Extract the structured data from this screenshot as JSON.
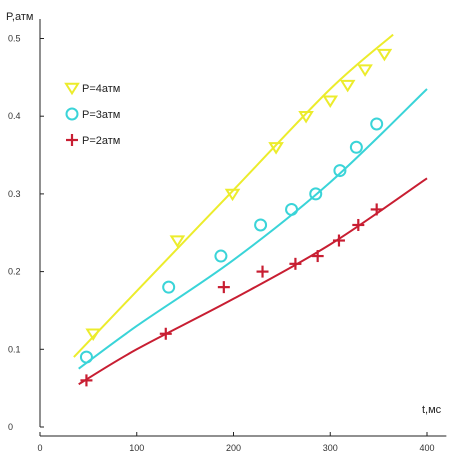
{
  "chart_data": {
    "type": "scatter",
    "xlabel": "t,мс",
    "ylabel": "P,атм",
    "xlim": [
      0,
      420
    ],
    "ylim": [
      0,
      0.52
    ],
    "x_ticks": [
      "0",
      "100",
      "200",
      "300",
      "400"
    ],
    "x_tick_values": [
      0,
      100,
      200,
      300,
      400
    ],
    "y_ticks": [
      "0",
      "0.1",
      "0.2",
      "0.3",
      "0.4",
      "0.5"
    ],
    "y_tick_values": [
      0,
      0.1,
      0.2,
      0.3,
      0.4,
      0.5
    ],
    "grid": false,
    "legend_position": "top-left",
    "series": [
      {
        "name": "P=4атм",
        "marker": "triangle-down",
        "color": "#ecec2c",
        "points": [
          [
            55,
            0.12
          ],
          [
            142,
            0.24
          ],
          [
            199,
            0.3
          ],
          [
            244,
            0.36
          ],
          [
            275,
            0.4
          ],
          [
            300,
            0.42
          ],
          [
            318,
            0.44
          ],
          [
            336,
            0.46
          ],
          [
            356,
            0.48
          ]
        ],
        "fit": [
          [
            35,
            0.09
          ],
          [
            100,
            0.175
          ],
          [
            200,
            0.305
          ],
          [
            300,
            0.435
          ],
          [
            365,
            0.505
          ]
        ]
      },
      {
        "name": "P=3атм",
        "marker": "circle",
        "color": "#3ad4d8",
        "points": [
          [
            48,
            0.09
          ],
          [
            133,
            0.18
          ],
          [
            187,
            0.22
          ],
          [
            228,
            0.26
          ],
          [
            260,
            0.28
          ],
          [
            285,
            0.3
          ],
          [
            310,
            0.33
          ],
          [
            327,
            0.36
          ],
          [
            348,
            0.39
          ]
        ],
        "fit": [
          [
            40,
            0.075
          ],
          [
            100,
            0.13
          ],
          [
            200,
            0.215
          ],
          [
            300,
            0.315
          ],
          [
            400,
            0.435
          ]
        ]
      },
      {
        "name": "P=2атм",
        "marker": "plus",
        "color": "#c81e32",
        "points": [
          [
            48,
            0.06
          ],
          [
            130,
            0.12
          ],
          [
            190,
            0.18
          ],
          [
            230,
            0.2
          ],
          [
            264,
            0.21
          ],
          [
            287,
            0.22
          ],
          [
            309,
            0.24
          ],
          [
            329,
            0.26
          ],
          [
            348,
            0.28
          ]
        ],
        "fit": [
          [
            40,
            0.055
          ],
          [
            100,
            0.1
          ],
          [
            200,
            0.165
          ],
          [
            300,
            0.235
          ],
          [
            400,
            0.32
          ]
        ]
      }
    ]
  }
}
